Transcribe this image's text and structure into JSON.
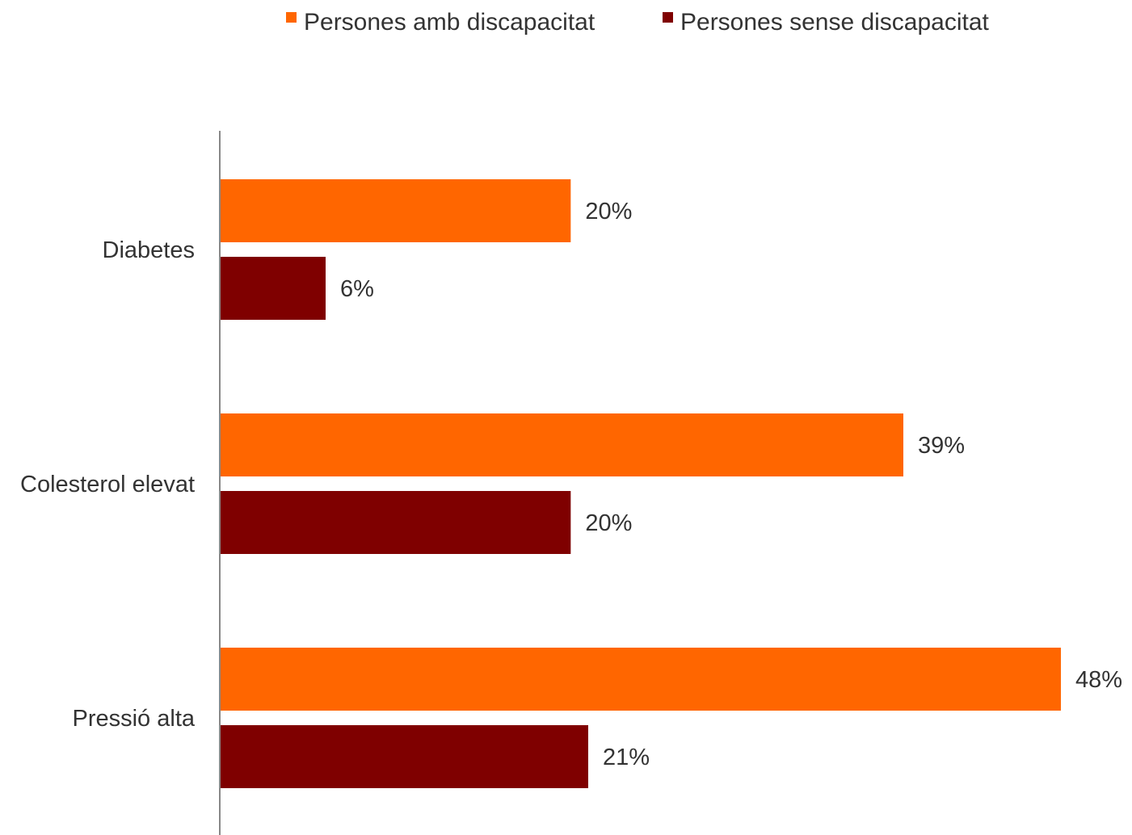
{
  "chart_data": {
    "type": "bar",
    "orientation": "horizontal",
    "categories": [
      "Diabetes",
      "Colesterol elevat",
      "Pressió alta"
    ],
    "series": [
      {
        "name": "Persones amb discapacitat",
        "color": "#ff6600",
        "values": [
          20,
          39,
          48
        ],
        "labels": [
          "20%",
          "39%",
          "48%"
        ]
      },
      {
        "name": "Persones sense discapacitat",
        "color": "#7f0000",
        "values": [
          6,
          20,
          21
        ],
        "labels": [
          "6%",
          "20%",
          "21%"
        ]
      }
    ],
    "xlim": [
      0,
      48
    ],
    "grid": false,
    "legend_position": "top-center"
  }
}
